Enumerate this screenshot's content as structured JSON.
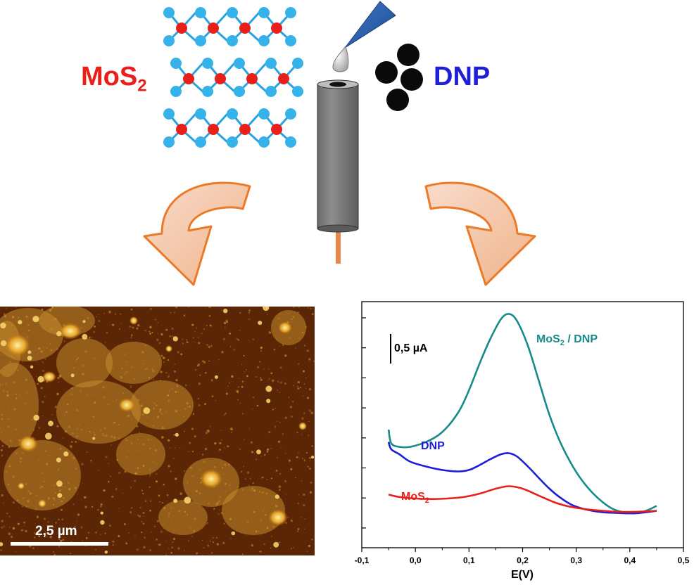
{
  "labels": {
    "mos2_main": "MoS",
    "mos2_sub": "2",
    "dnp_main": "DNP"
  },
  "micrograph": {
    "scale_bar_label": "2,5 µm"
  },
  "chart_data": {
    "type": "line",
    "xlabel": "E(V)",
    "ylabel": "",
    "xlim": [
      -0.1,
      0.5
    ],
    "x_ticks": [
      "-0,1",
      "0,0",
      "0,1",
      "0,2",
      "0,3",
      "0,4",
      "0,5"
    ],
    "scale_bar": "0,5 µA",
    "series": [
      {
        "name": "MoS2 / DNP",
        "color": "#178a8a",
        "x": [
          -0.05,
          -0.045,
          -0.03,
          -0.01,
          0.02,
          0.05,
          0.08,
          0.1,
          0.12,
          0.14,
          0.16,
          0.175,
          0.19,
          0.21,
          0.23,
          0.25,
          0.27,
          0.29,
          0.31,
          0.33,
          0.35,
          0.37,
          0.39,
          0.41,
          0.43,
          0.45
        ],
        "y": [
          1.7,
          1.42,
          1.35,
          1.35,
          1.45,
          1.65,
          2.05,
          2.5,
          3.05,
          3.55,
          3.95,
          4.05,
          3.9,
          3.4,
          2.7,
          2.0,
          1.45,
          1.02,
          0.68,
          0.42,
          0.22,
          0.08,
          0.02,
          0.0,
          0.05,
          0.15
        ]
      },
      {
        "name": "DNP",
        "color": "#1c1cdc",
        "x": [
          -0.05,
          -0.045,
          -0.03,
          -0.01,
          0.02,
          0.05,
          0.08,
          0.1,
          0.12,
          0.14,
          0.16,
          0.175,
          0.19,
          0.21,
          0.23,
          0.25,
          0.27,
          0.29,
          0.31,
          0.33,
          0.35,
          0.37,
          0.39,
          0.41,
          0.43,
          0.45
        ],
        "y": [
          1.45,
          1.3,
          1.2,
          1.05,
          0.95,
          0.88,
          0.85,
          0.88,
          0.98,
          1.1,
          1.2,
          1.22,
          1.15,
          0.95,
          0.72,
          0.5,
          0.32,
          0.18,
          0.1,
          0.05,
          0.02,
          0.01,
          0.0,
          0.0,
          0.02,
          0.05
        ]
      },
      {
        "name": "MoS2",
        "color": "#e8201a",
        "x": [
          -0.05,
          -0.03,
          0.0,
          0.03,
          0.06,
          0.09,
          0.12,
          0.15,
          0.175,
          0.2,
          0.23,
          0.26,
          0.29,
          0.32,
          0.35,
          0.38,
          0.41,
          0.45
        ],
        "y": [
          0.38,
          0.33,
          0.3,
          0.29,
          0.3,
          0.33,
          0.4,
          0.5,
          0.55,
          0.5,
          0.36,
          0.22,
          0.13,
          0.08,
          0.05,
          0.03,
          0.03,
          0.05
        ]
      }
    ],
    "series_labels": {
      "mos2dnp_main": "MoS",
      "mos2dnp_sub": "2",
      "mos2dnp_rest": " / DNP",
      "dnp": "DNP",
      "mos2_main": "MoS",
      "mos2_sub": "2"
    }
  }
}
